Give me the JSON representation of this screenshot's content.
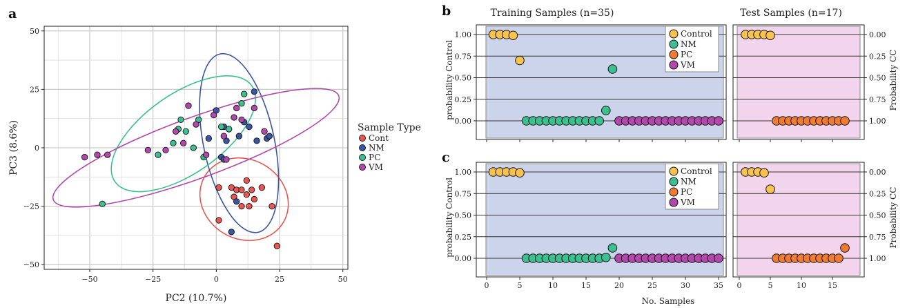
{
  "colors": {
    "Cont": "#e8574f",
    "NM": "#3a55a4",
    "PC": "#3cbf91",
    "VM": "#b248ac",
    "Control": "#f8c24e",
    "ClsNM": "#3cbf91",
    "ClsPC": "#f07c33",
    "ClsVM": "#b248ac",
    "train_bg": "#cbd4ea",
    "test_bg": "#f2d4ec"
  },
  "chart_data": [
    {
      "panel": "a",
      "type": "scatter",
      "xlabel": "PC2 (10.7%)",
      "ylabel": "PC3 (8.6%)",
      "xlim": [
        -68,
        52
      ],
      "ylim": [
        -52,
        52
      ],
      "xticks": [
        -50,
        -25,
        0,
        25,
        50
      ],
      "yticks": [
        -50,
        -25,
        0,
        25,
        50
      ],
      "xtick_labels": [
        "−50",
        "−25",
        "0",
        "25",
        "50"
      ],
      "ytick_labels": [
        "−50",
        "−25",
        "0",
        "25",
        "50"
      ],
      "grid": true,
      "legend_title": "Sample Type",
      "legend_position": "right",
      "series": [
        {
          "name": "Cont",
          "points": [
            [
              1,
              -17
            ],
            [
              6,
              -17
            ],
            [
              8,
              -18
            ],
            [
              10,
              -18
            ],
            [
              12,
              -14
            ],
            [
              14,
              -18
            ],
            [
              18,
              -17
            ],
            [
              12,
              -20
            ],
            [
              7,
              -21
            ],
            [
              15,
              -22
            ],
            [
              10,
              -25
            ],
            [
              13,
              -25
            ],
            [
              22,
              -25
            ],
            [
              1,
              -31
            ],
            [
              24,
              -42
            ]
          ]
        },
        {
          "name": "NM",
          "points": [
            [
              0,
              16
            ],
            [
              3,
              9
            ],
            [
              5,
              8
            ],
            [
              4,
              3
            ],
            [
              9,
              5
            ],
            [
              11,
              11
            ],
            [
              13,
              9
            ],
            [
              15,
              24
            ],
            [
              16,
              3
            ],
            [
              20,
              4
            ],
            [
              21,
              5
            ],
            [
              2,
              -4
            ],
            [
              8,
              -23
            ],
            [
              6,
              -36
            ],
            [
              -3,
              4
            ],
            [
              3,
              -5
            ],
            [
              -15,
              8
            ]
          ]
        },
        {
          "name": "PC",
          "points": [
            [
              -45,
              -24
            ],
            [
              -23,
              -3
            ],
            [
              -17,
              2
            ],
            [
              -15,
              8
            ],
            [
              -14,
              12
            ],
            [
              -12,
              7
            ],
            [
              -9,
              0
            ],
            [
              -7,
              12
            ],
            [
              2,
              9
            ],
            [
              5,
              8
            ],
            [
              10,
              19
            ],
            [
              11,
              23
            ],
            [
              -5,
              -4
            ]
          ]
        },
        {
          "name": "VM",
          "points": [
            [
              -52,
              -4
            ],
            [
              -47,
              -3
            ],
            [
              -43,
              -3
            ],
            [
              -27,
              -1
            ],
            [
              -20,
              -1
            ],
            [
              -16,
              7
            ],
            [
              -13,
              2
            ],
            [
              -8,
              10
            ],
            [
              -4,
              -3
            ],
            [
              -1,
              14
            ],
            [
              3,
              5
            ],
            [
              7,
              13
            ],
            [
              8,
              17
            ],
            [
              10,
              12
            ],
            [
              15,
              17
            ],
            [
              19,
              7
            ],
            [
              -11,
              18
            ],
            [
              4,
              -5
            ]
          ]
        }
      ],
      "ellipses": [
        {
          "name": "Cont",
          "center": [
            11,
            -22
          ],
          "rx": 18,
          "ry": 17,
          "angle": -30
        },
        {
          "name": "NM",
          "center": [
            9,
            2
          ],
          "rx": 14,
          "ry": 39,
          "angle": 12
        },
        {
          "name": "PC",
          "center": [
            -13,
            6
          ],
          "rx": 33,
          "ry": 17,
          "angle": 35
        },
        {
          "name": "VM",
          "center": [
            -8,
            0
          ],
          "rx": 60,
          "ry": 13,
          "angle": 20
        }
      ]
    },
    {
      "panel": "b",
      "type": "scatter",
      "title_left": "Training Samples (n=35)",
      "title_right": "Test Samples (n=17)",
      "ylabel_left": "probability Control",
      "ylabel_right": "Probability CC",
      "yticks_left": [
        "1.00",
        "0.75",
        "0.50",
        "0.25",
        "0.00"
      ],
      "yticks_right": [
        "0.00",
        "0.25",
        "0.50",
        "0.75",
        "1.00"
      ],
      "ylim": [
        0,
        1
      ],
      "train_xlim": [
        0,
        36
      ],
      "test_xlim": [
        0,
        18
      ],
      "legend": [
        "Control",
        "NM",
        "PC",
        "VM"
      ],
      "train": [
        {
          "cls": "Control",
          "points": [
            [
              1,
              1.0
            ],
            [
              2,
              1.0
            ],
            [
              3,
              1.0
            ],
            [
              4,
              0.99
            ],
            [
              5,
              0.7
            ]
          ]
        },
        {
          "cls": "NM",
          "points": [
            [
              6,
              0
            ],
            [
              7,
              0
            ],
            [
              8,
              0
            ],
            [
              9,
              0
            ],
            [
              10,
              0
            ],
            [
              11,
              0
            ],
            [
              12,
              0
            ],
            [
              13,
              0
            ],
            [
              14,
              0
            ],
            [
              15,
              0
            ],
            [
              16,
              0
            ],
            [
              17,
              0
            ],
            [
              18,
              0.12
            ],
            [
              19,
              0.6
            ]
          ]
        },
        {
          "cls": "VM",
          "points": [
            [
              20,
              0
            ],
            [
              21,
              0
            ],
            [
              22,
              0
            ],
            [
              23,
              0
            ],
            [
              24,
              0
            ],
            [
              25,
              0
            ],
            [
              26,
              0
            ],
            [
              27,
              0
            ],
            [
              28,
              0
            ],
            [
              29,
              0
            ],
            [
              30,
              0
            ],
            [
              31,
              0
            ],
            [
              32,
              0
            ],
            [
              33,
              0
            ],
            [
              34,
              0
            ],
            [
              35,
              0
            ]
          ]
        }
      ],
      "test": [
        {
          "cls": "Control",
          "points": [
            [
              1,
              1.0
            ],
            [
              2,
              1.0
            ],
            [
              3,
              1.0
            ],
            [
              4,
              1.0
            ],
            [
              5,
              0.99
            ]
          ]
        },
        {
          "cls": "PC",
          "points": [
            [
              6,
              0
            ],
            [
              7,
              0
            ],
            [
              8,
              0
            ],
            [
              9,
              0
            ],
            [
              10,
              0
            ],
            [
              11,
              0
            ],
            [
              12,
              0
            ],
            [
              13,
              0
            ],
            [
              14,
              0
            ],
            [
              15,
              0
            ],
            [
              16,
              0
            ],
            [
              17,
              0
            ]
          ]
        }
      ]
    },
    {
      "panel": "c",
      "type": "scatter",
      "ylabel_left": "probability Control",
      "ylabel_right": "Probability CC",
      "yticks_left": [
        "1.00",
        "0.75",
        "0.50",
        "0.25",
        "0.00"
      ],
      "yticks_right": [
        "0.00",
        "0.25",
        "0.50",
        "0.75",
        "1.00"
      ],
      "xlabel": "No. Samples",
      "train_xticks": [
        0,
        5,
        10,
        15,
        20,
        25,
        30,
        35
      ],
      "test_xticks": [
        0,
        5,
        10,
        15
      ],
      "ylim": [
        0,
        1
      ],
      "train_xlim": [
        0,
        36
      ],
      "test_xlim": [
        0,
        18
      ],
      "legend": [
        "Control",
        "NM",
        "PC",
        "VM"
      ],
      "train": [
        {
          "cls": "Control",
          "points": [
            [
              1,
              1.0
            ],
            [
              2,
              1.0
            ],
            [
              3,
              1.0
            ],
            [
              4,
              1.0
            ],
            [
              5,
              0.99
            ]
          ]
        },
        {
          "cls": "NM",
          "points": [
            [
              6,
              0
            ],
            [
              7,
              0
            ],
            [
              8,
              0
            ],
            [
              9,
              0
            ],
            [
              10,
              0
            ],
            [
              11,
              0
            ],
            [
              12,
              0
            ],
            [
              13,
              0
            ],
            [
              14,
              0
            ],
            [
              15,
              0
            ],
            [
              16,
              0
            ],
            [
              17,
              0
            ],
            [
              18,
              0.01
            ],
            [
              19,
              0.12
            ]
          ]
        },
        {
          "cls": "VM",
          "points": [
            [
              20,
              0
            ],
            [
              21,
              0
            ],
            [
              22,
              0
            ],
            [
              23,
              0
            ],
            [
              24,
              0
            ],
            [
              25,
              0
            ],
            [
              26,
              0
            ],
            [
              27,
              0
            ],
            [
              28,
              0
            ],
            [
              29,
              0
            ],
            [
              30,
              0
            ],
            [
              31,
              0
            ],
            [
              32,
              0
            ],
            [
              33,
              0
            ],
            [
              34,
              0
            ],
            [
              35,
              0
            ]
          ]
        }
      ],
      "test": [
        {
          "cls": "Control",
          "points": [
            [
              1,
              1.0
            ],
            [
              2,
              1.0
            ],
            [
              3,
              1.0
            ],
            [
              4,
              0.99
            ],
            [
              5,
              0.8
            ]
          ]
        },
        {
          "cls": "PC",
          "points": [
            [
              6,
              0
            ],
            [
              7,
              0
            ],
            [
              8,
              0
            ],
            [
              9,
              0
            ],
            [
              10,
              0
            ],
            [
              11,
              0
            ],
            [
              12,
              0
            ],
            [
              13,
              0
            ],
            [
              14,
              0
            ],
            [
              15,
              0
            ],
            [
              16,
              0
            ],
            [
              17,
              0.12
            ]
          ]
        }
      ]
    }
  ]
}
